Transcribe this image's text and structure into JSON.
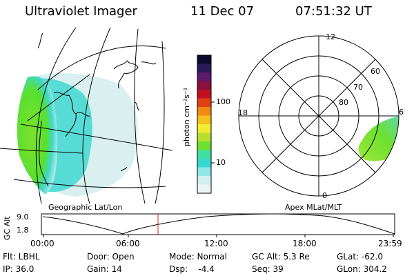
{
  "header": {
    "instrument": "Ultraviolet Imager",
    "date": "11 Dec 07",
    "time": "07:51:32 UT"
  },
  "colorbar": {
    "unit_label": "photon cm⁻²s⁻¹",
    "ticks": [
      "100",
      "10"
    ],
    "colors": [
      "#0b0b2e",
      "#2a1a55",
      "#5a1b6a",
      "#8a1040",
      "#c01020",
      "#e04010",
      "#f08a10",
      "#f4c020",
      "#f0ec30",
      "#b8e030",
      "#6ee030",
      "#40e0a0",
      "#38d8d0",
      "#8fe8e8",
      "#cfeff0",
      "#eef4f4"
    ]
  },
  "left_map": {
    "caption": "Geographic Lat/Lon"
  },
  "right_dial": {
    "caption": "Apex MLat/MLT",
    "mlt_labels": {
      "top": "12",
      "left": "18",
      "right": "6",
      "bottom": "0"
    },
    "lat_labels": [
      "60",
      "70",
      "80"
    ]
  },
  "timeline": {
    "axis_label": "GC Alt",
    "y_ticks": [
      "9.0",
      "1.8"
    ],
    "x_ticks": [
      "00:00",
      "06:00",
      "12:00",
      "18:00",
      "23:59"
    ],
    "marker_time": "07:51:32",
    "marker_color": "#e02020"
  },
  "footer": {
    "filter": "Flt: LBHL",
    "door": "Door: Open",
    "mode": "Mode: Normal",
    "gc_alt": "GC Alt: 5.3 Re",
    "glat": "GLat: -62.0",
    "ip": "IP: 36.0",
    "gain": "Gain: 14",
    "dsp": "Dsp:    -4.4",
    "seq": "Seq: 39",
    "glon": "GLon: 304.2"
  }
}
